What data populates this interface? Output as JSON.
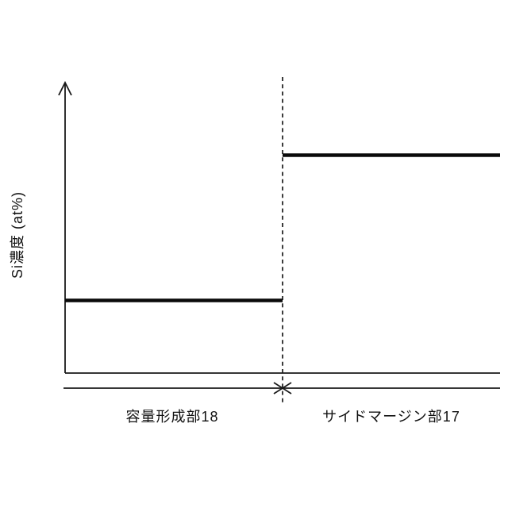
{
  "figure": {
    "background_color": "#ffffff",
    "ink_color": "#1a1a1a"
  },
  "chart_data": {
    "type": "line",
    "subtype": "step",
    "title": "",
    "xlabel": "",
    "ylabel": "Si濃度 (at%)",
    "categories": [
      "容量形成部18",
      "サイドマージン部17"
    ],
    "series": [
      {
        "name": "Si濃度",
        "values": [
          0.25,
          0.75
        ]
      }
    ],
    "ylim": [
      0,
      1
    ],
    "y_ticks": [],
    "x_ticks": [],
    "grid": false,
    "legend": false,
    "layout_hints": {
      "boundary": "dashed vertical line between the two regions",
      "boundary_marker": "crossed arrowheads where region span line meets dashed line",
      "y_axis_arrow": "open arrowhead pointing up",
      "colors": {
        "line": "#000000",
        "background": "#ffffff"
      }
    }
  }
}
